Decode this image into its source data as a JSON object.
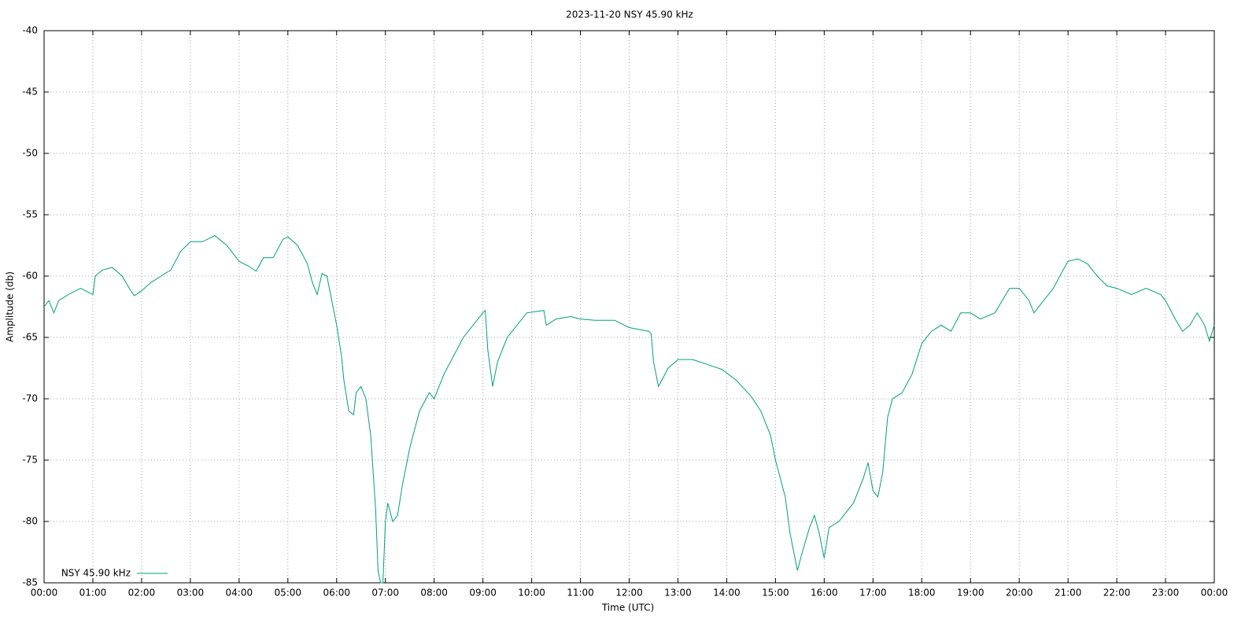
{
  "chart_data": {
    "type": "line",
    "title": "2023-11-20 NSY 45.90 kHz",
    "x_label": "Time (UTC)",
    "y_label": "Amplitude (db)",
    "xlim": [
      0,
      24
    ],
    "ylim": [
      -85,
      -40
    ],
    "xticks": [
      {
        "value": 0,
        "label": "00:00"
      },
      {
        "value": 1,
        "label": "01:00"
      },
      {
        "value": 2,
        "label": "02:00"
      },
      {
        "value": 3,
        "label": "03:00"
      },
      {
        "value": 4,
        "label": "04:00"
      },
      {
        "value": 5,
        "label": "05:00"
      },
      {
        "value": 6,
        "label": "06:00"
      },
      {
        "value": 7,
        "label": "07:00"
      },
      {
        "value": 8,
        "label": "08:00"
      },
      {
        "value": 9,
        "label": "09:00"
      },
      {
        "value": 10,
        "label": "10:00"
      },
      {
        "value": 11,
        "label": "11:00"
      },
      {
        "value": 12,
        "label": "12:00"
      },
      {
        "value": 13,
        "label": "13:00"
      },
      {
        "value": 14,
        "label": "14:00"
      },
      {
        "value": 15,
        "label": "15:00"
      },
      {
        "value": 16,
        "label": "16:00"
      },
      {
        "value": 17,
        "label": "17:00"
      },
      {
        "value": 18,
        "label": "18:00"
      },
      {
        "value": 19,
        "label": "19:00"
      },
      {
        "value": 20,
        "label": "20:00"
      },
      {
        "value": 21,
        "label": "21:00"
      },
      {
        "value": 22,
        "label": "22:00"
      },
      {
        "value": 23,
        "label": "23:00"
      },
      {
        "value": 24,
        "label": "00:00"
      }
    ],
    "yticks": [
      -40,
      -45,
      -50,
      -55,
      -60,
      -65,
      -70,
      -75,
      -80,
      -85
    ],
    "grid": true,
    "legend": "lower left",
    "x": [
      0.0,
      0.1,
      0.2,
      0.3,
      0.5,
      0.75,
      0.9,
      1.0,
      1.05,
      1.2,
      1.4,
      1.6,
      1.75,
      1.85,
      2.0,
      2.2,
      2.4,
      2.6,
      2.8,
      3.0,
      3.25,
      3.5,
      3.75,
      4.0,
      4.2,
      4.35,
      4.5,
      4.7,
      4.9,
      5.0,
      5.2,
      5.4,
      5.5,
      5.6,
      5.7,
      5.8,
      5.9,
      6.0,
      6.1,
      6.15,
      6.25,
      6.35,
      6.4,
      6.5,
      6.6,
      6.7,
      6.8,
      6.85,
      6.9,
      6.95,
      7.0,
      7.05,
      7.15,
      7.25,
      7.35,
      7.5,
      7.7,
      7.9,
      8.0,
      8.2,
      8.4,
      8.6,
      8.8,
      9.0,
      9.05,
      9.1,
      9.2,
      9.3,
      9.5,
      9.7,
      9.9,
      10.25,
      10.3,
      10.5,
      10.8,
      11.0,
      11.3,
      11.7,
      12.0,
      12.4,
      12.45,
      12.5,
      12.6,
      12.8,
      13.0,
      13.3,
      13.6,
      13.9,
      14.2,
      14.5,
      14.7,
      14.9,
      15.0,
      15.2,
      15.3,
      15.45,
      15.55,
      15.7,
      15.8,
      15.9,
      16.0,
      16.1,
      16.3,
      16.5,
      16.6,
      16.8,
      16.9,
      17.0,
      17.1,
      17.2,
      17.3,
      17.4,
      17.6,
      17.8,
      18.0,
      18.2,
      18.4,
      18.6,
      18.8,
      19.0,
      19.2,
      19.5,
      19.8,
      20.0,
      20.2,
      20.3,
      20.5,
      20.7,
      20.9,
      21.0,
      21.2,
      21.4,
      21.6,
      21.8,
      22.0,
      22.3,
      22.6,
      22.9,
      23.0,
      23.2,
      23.35,
      23.5,
      23.65,
      23.8,
      23.9,
      24.0
    ],
    "series": [
      {
        "name": "NSY 45.90 kHz",
        "color": "#00a07a",
        "values": [
          -62.5,
          -62,
          -63,
          -62,
          -61.5,
          -61,
          -61.3,
          -61.5,
          -60,
          -59.5,
          -59.3,
          -60,
          -61,
          -61.6,
          -61.2,
          -60.5,
          -60,
          -59.5,
          -58,
          -57.2,
          -57.2,
          -56.7,
          -57.5,
          -58.8,
          -59.2,
          -59.6,
          -58.5,
          -58.5,
          -57,
          -56.8,
          -57.5,
          -59,
          -60.5,
          -61.5,
          -59.8,
          -60,
          -62,
          -64,
          -66.5,
          -68.5,
          -71,
          -71.3,
          -69.5,
          -69,
          -70,
          -73,
          -79,
          -84,
          -85,
          -85,
          -80,
          -78.5,
          -80,
          -79.5,
          -77,
          -74,
          -71,
          -69.5,
          -70,
          -68,
          -66.5,
          -65,
          -64,
          -63,
          -62.8,
          -66,
          -69,
          -67,
          -65,
          -64,
          -63,
          -62.8,
          -64,
          -63.5,
          -63.3,
          -63.5,
          -63.6,
          -63.6,
          -64.2,
          -64.5,
          -64.7,
          -67,
          -69,
          -67.5,
          -66.8,
          -66.8,
          -67.2,
          -67.6,
          -68.5,
          -69.8,
          -71,
          -73,
          -75,
          -78,
          -81,
          -84,
          -82.5,
          -80.5,
          -79.5,
          -81,
          -83,
          -80.5,
          -80,
          -79,
          -78.5,
          -76.5,
          -75.2,
          -77.5,
          -78,
          -76,
          -71.5,
          -70,
          -69.5,
          -68,
          -65.5,
          -64.5,
          -64,
          -64.5,
          -63,
          -63,
          -63.5,
          -63,
          -61,
          -61,
          -62,
          -63,
          -62,
          -61,
          -59.5,
          -58.8,
          -58.6,
          -59,
          -60,
          -60.8,
          -61,
          -61.5,
          -61,
          -61.5,
          -62,
          -63.5,
          -64.5,
          -64,
          -63,
          -64,
          -65.3,
          -64
        ]
      }
    ]
  }
}
